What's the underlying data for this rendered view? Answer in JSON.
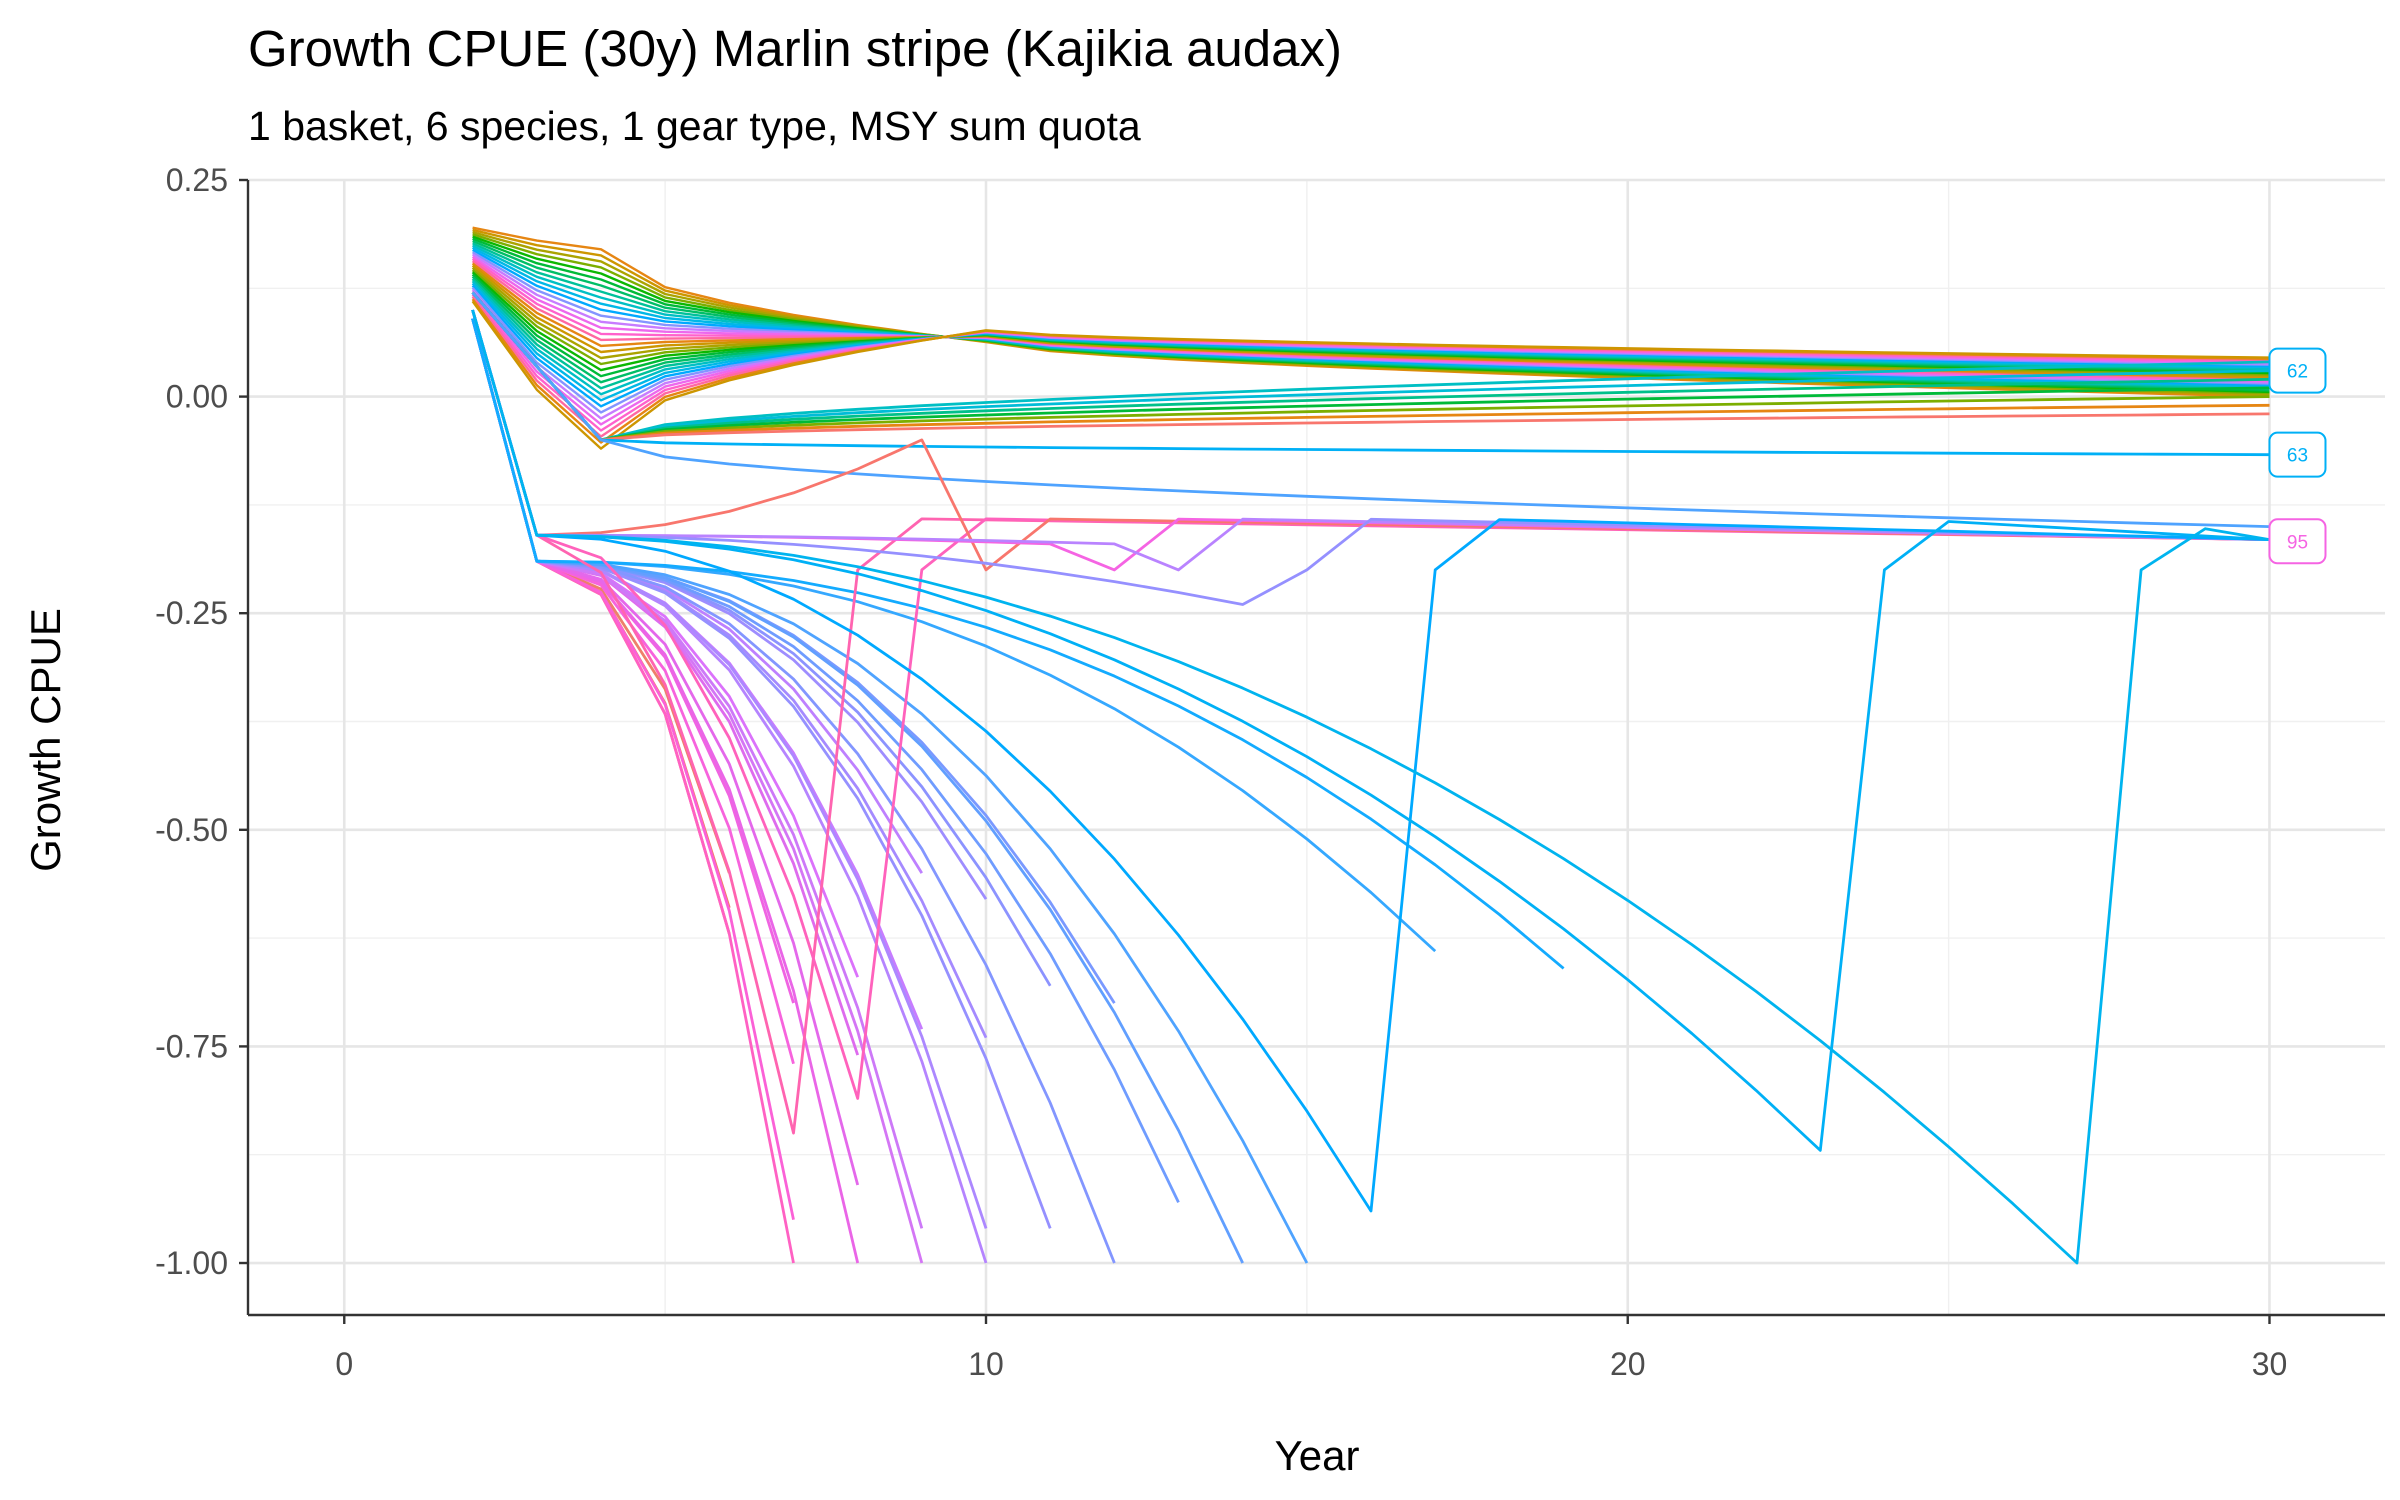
{
  "chart_data": {
    "type": "line",
    "title": "Growth CPUE (30y) Marlin stripe (Kajikia audax)",
    "subtitle": "1 basket, 6 species, 1 gear type, MSY sum quota",
    "xlabel": "Year",
    "ylabel": "Growth CPUE",
    "xlim": [
      -1.5,
      31.8
    ],
    "ylim": [
      -1.06,
      0.25
    ],
    "x_ticks": [
      "0",
      "10",
      "20",
      "30"
    ],
    "y_ticks": [
      "0.25",
      "0.00",
      "-0.25",
      "-0.50",
      "-0.75",
      "-1.00"
    ],
    "grid": true,
    "legend": "none",
    "end_labels": [
      {
        "text": "62",
        "y": 0.03,
        "color": "#00B0F6"
      },
      {
        "text": "63",
        "y": -0.067,
        "color": "#00B0F6"
      },
      {
        "text": "95",
        "y": -0.167,
        "color": "#F564E3"
      }
    ],
    "colors": {
      "crash_early": "#F8766D",
      "crash_mid": "#C77CFF",
      "crash_late": "#00A9FF",
      "recovering": "#F564E3",
      "stable_high": "#00BFC4",
      "stable_mid": "#00BA38",
      "stable_low": "#E68613"
    },
    "series_groups": {
      "crash_then_terminate": [
        {
          "end": 6,
          "final": -0.62,
          "color": "#F8766D"
        },
        {
          "end": 6,
          "final": -0.59,
          "color": "#F27F5B"
        },
        {
          "end": 6,
          "final": -0.55,
          "color": "#EE7F6A"
        },
        {
          "end": 7,
          "final": -1.0,
          "color": "#FF61C3"
        },
        {
          "end": 7,
          "final": -0.95,
          "color": "#FB61D7"
        },
        {
          "end": 7,
          "final": -0.77,
          "color": "#F763DD"
        },
        {
          "end": 7,
          "final": -0.7,
          "color": "#F064E2"
        },
        {
          "end": 8,
          "final": -1.0,
          "color": "#EA65E7"
        },
        {
          "end": 8,
          "final": -0.91,
          "color": "#E468EB"
        },
        {
          "end": 8,
          "final": -0.76,
          "color": "#DE6BEE"
        },
        {
          "end": 8,
          "final": -0.67,
          "color": "#DB72FB"
        },
        {
          "end": 9,
          "final": -1.0,
          "color": "#D476F5"
        },
        {
          "end": 9,
          "final": -0.96,
          "color": "#CD79F8"
        },
        {
          "end": 9,
          "final": -0.73,
          "color": "#C77CFF"
        },
        {
          "end": 9,
          "final": -0.55,
          "color": "#BE80FF"
        },
        {
          "end": 10,
          "final": -1.0,
          "color": "#B584FF"
        },
        {
          "end": 10,
          "final": -0.96,
          "color": "#AC88FF"
        },
        {
          "end": 10,
          "final": -0.74,
          "color": "#A58AFF"
        },
        {
          "end": 10,
          "final": -0.58,
          "color": "#9E8DFF"
        },
        {
          "end": 11,
          "final": -0.96,
          "color": "#9590FF"
        },
        {
          "end": 11,
          "final": -0.68,
          "color": "#8C93FF"
        },
        {
          "end": 12,
          "final": -1.0,
          "color": "#8396FF"
        },
        {
          "end": 12,
          "final": -0.7,
          "color": "#7A99FF"
        },
        {
          "end": 13,
          "final": -0.93,
          "color": "#6F9CFF"
        },
        {
          "end": 14,
          "final": -1.0,
          "color": "#619FFF"
        },
        {
          "end": 15,
          "final": -1.0,
          "color": "#4FA3FF"
        },
        {
          "end": 17,
          "final": -0.64,
          "color": "#35A8FF"
        },
        {
          "end": 19,
          "final": -0.66,
          "color": "#13ABFF"
        }
      ],
      "recovering": [
        {
          "peak": 7,
          "trough": -0.85,
          "color": "#FF64B0"
        },
        {
          "peak": 8,
          "trough": -0.81,
          "color": "#FF62BC"
        },
        {
          "peak": 9,
          "trough": -0.05,
          "color": "#F8766D"
        },
        {
          "peak": 11,
          "trough": -0.17,
          "color": "#F564E3"
        },
        {
          "peak": 12,
          "trough": -0.17,
          "color": "#B983FF"
        },
        {
          "peak": 14,
          "trough": -0.24,
          "color": "#9590FF"
        },
        {
          "peak": 16,
          "trough": -0.94,
          "color": "#00A9FF"
        },
        {
          "peak": 23,
          "trough": -0.87,
          "color": "#00B0F6"
        },
        {
          "peak": 27,
          "trough": -1.0,
          "color": "#00B4EF"
        }
      ],
      "stable": [
        {
          "final": 0.04,
          "color": "#00BFC4"
        },
        {
          "final": 0.03,
          "color": "#00BCD8"
        },
        {
          "final": 0.02,
          "color": "#00C08B"
        },
        {
          "final": 0.01,
          "color": "#00BA38"
        },
        {
          "final": 0.0,
          "color": "#7CAE00"
        },
        {
          "final": -0.01,
          "color": "#E68613"
        },
        {
          "final": -0.02,
          "color": "#F8766D"
        },
        {
          "final": -0.067,
          "color": "#00B0F6"
        },
        {
          "final": -0.15,
          "color": "#4FA3FF"
        }
      ]
    }
  }
}
